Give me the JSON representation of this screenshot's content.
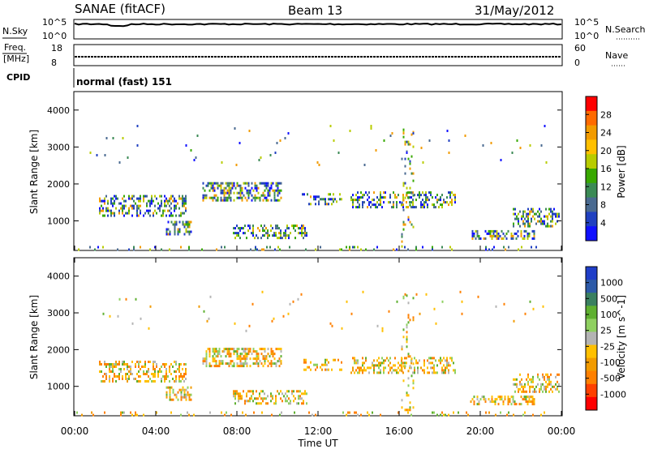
{
  "header": {
    "station": "SANAE (fitACF)",
    "beam": "Beam 13",
    "date": "31/May/2012"
  },
  "noise_panel": {
    "left_label": "N.Sky",
    "right_label": "N.Search",
    "left_ticks": [
      "10^5",
      "10^0"
    ],
    "right_ticks": [
      "10^5",
      "10^0"
    ]
  },
  "freq_panel": {
    "left_label_1": "Freq.",
    "left_label_2": "[MHz]",
    "left_ticks": [
      "18",
      "8"
    ],
    "right_label": "Nave",
    "right_ticks": [
      "60",
      "0"
    ],
    "cpid_label": "CPID",
    "cpid_value": "normal (fast) 151"
  },
  "chart_data": [
    {
      "type": "heatmap",
      "name": "power",
      "ylabel": "Slant Range [km]",
      "yticks": [
        "4000",
        "3000",
        "2000",
        "1000"
      ],
      "ylim": [
        200,
        4500
      ],
      "colorbar_label": "Power [dB]",
      "colorbar_ticks": [
        "28",
        "24",
        "20",
        "16",
        "12",
        "8",
        "4"
      ],
      "colorbar_colors": [
        "#ff0000",
        "#ff6a00",
        "#f29b00",
        "#ffc000",
        "#b8cc00",
        "#38a800",
        "#3b8a55",
        "#4a6a90",
        "#2040c0",
        "#1010ff"
      ]
    },
    {
      "type": "heatmap",
      "name": "velocity",
      "ylabel": "Slant Range [km]",
      "yticks": [
        "4000",
        "3000",
        "2000",
        "1000"
      ],
      "ylim": [
        200,
        4500
      ],
      "colorbar_label": "Velocity [m s^-1]",
      "colorbar_ticks": [
        "1000",
        "500",
        "100",
        "25",
        "-25",
        "-100",
        "-500",
        "-1000"
      ],
      "colorbar_colors": [
        "#1f3ec8",
        "#2d5aa8",
        "#3a8060",
        "#5fb030",
        "#8fd060",
        "#b4b4b4",
        "#ffc000",
        "#f29b00",
        "#ff8000",
        "#ff4000",
        "#ff0000"
      ]
    }
  ],
  "x_axis": {
    "ticks": [
      "00:00",
      "04:00",
      "08:00",
      "12:00",
      "16:00",
      "20:00",
      "00:00"
    ],
    "label": "Time UT"
  }
}
